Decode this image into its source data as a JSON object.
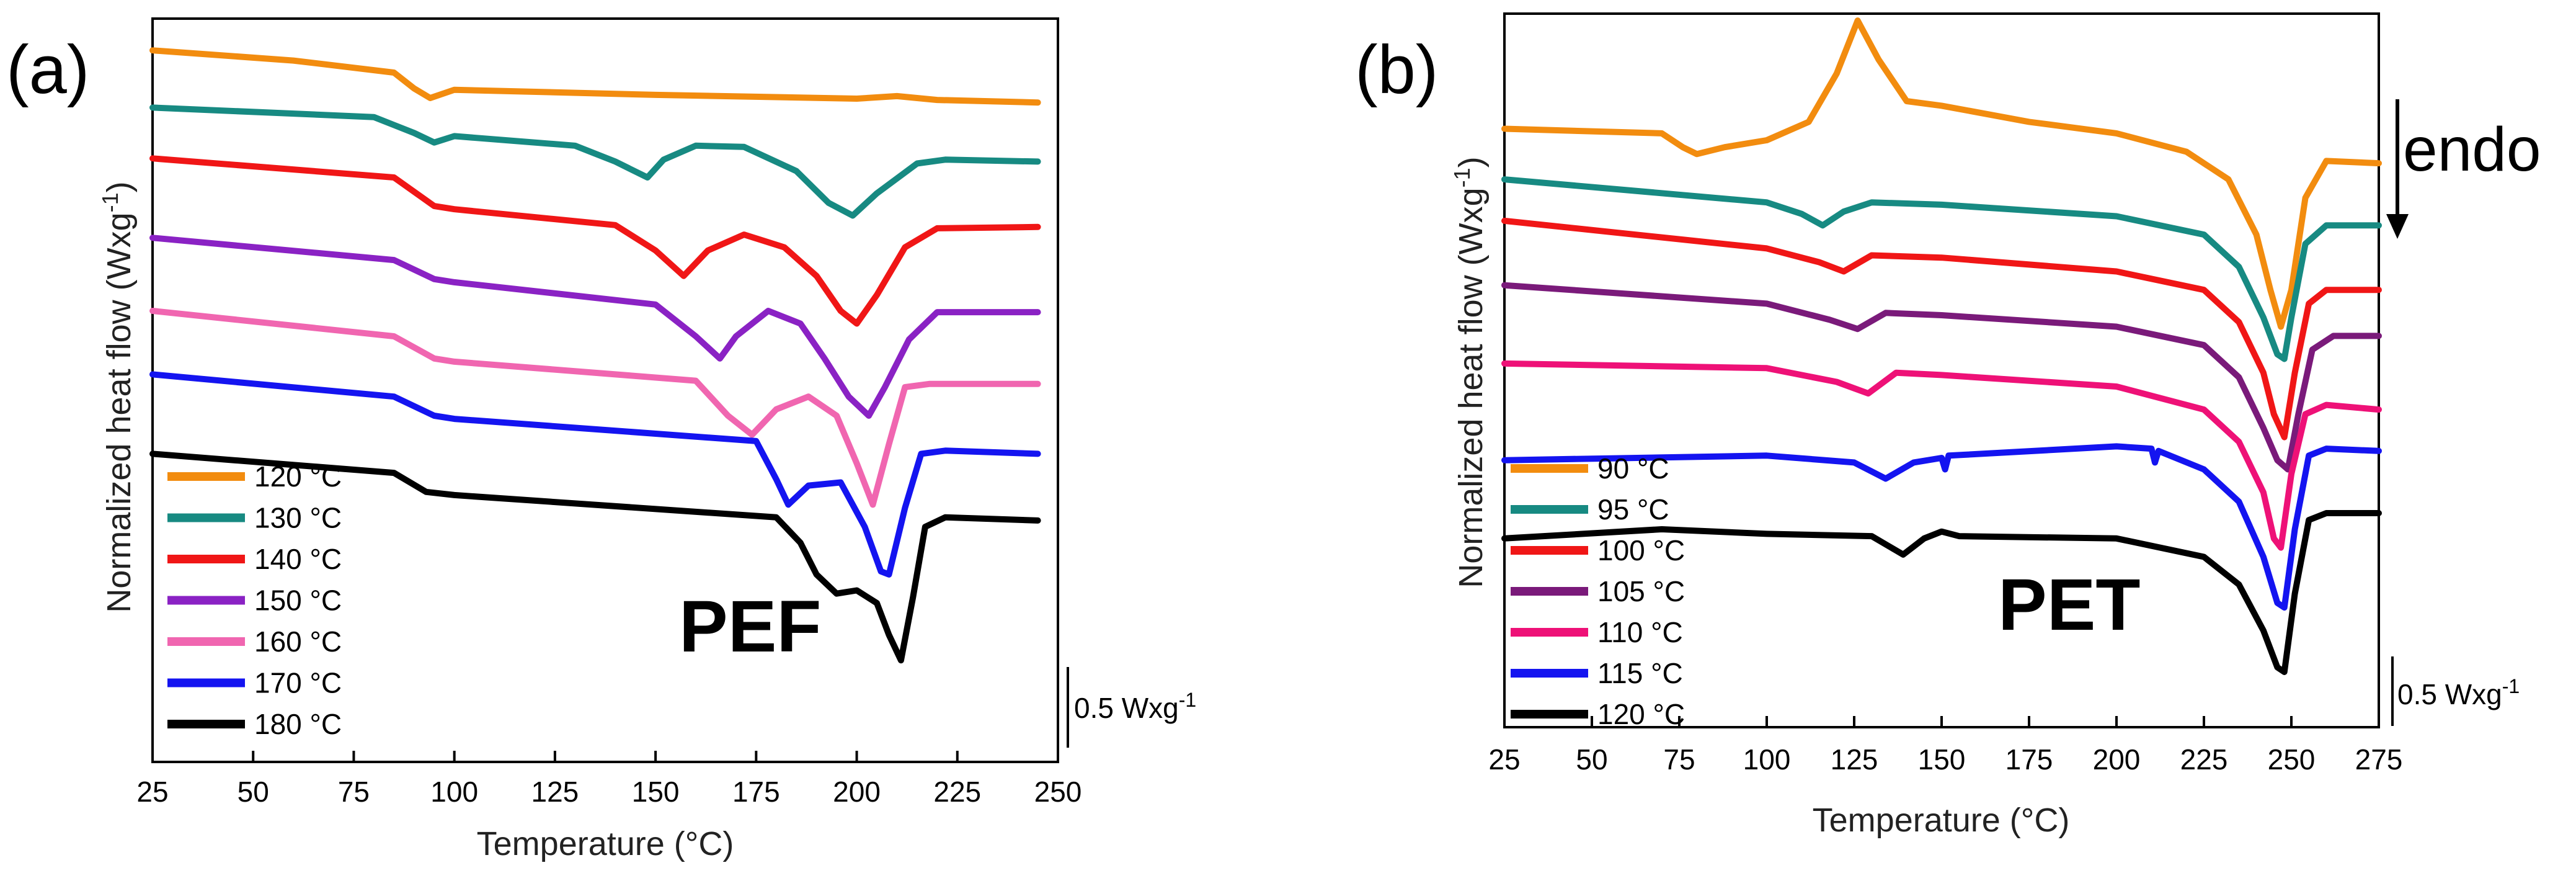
{
  "figure": {
    "panels": [
      "(a)",
      "(b)"
    ]
  },
  "chart_data": [
    {
      "type": "line",
      "panel_label": "(a)",
      "annotation": "PEF",
      "xlabel": "Temperature (°C)",
      "ylabel": "Normalized heat flow (Wxg",
      "ylabel_sup": "-1",
      "ylabel_end": ")",
      "xlim": [
        25,
        250
      ],
      "ylim": [
        -11.2,
        0.5
      ],
      "xticks": [
        25,
        50,
        75,
        100,
        125,
        150,
        175,
        200,
        225,
        250
      ],
      "scale_bar": {
        "label": "0.5 Wxg",
        "sup": "-1",
        "value": 0.5
      },
      "series": [
        {
          "name": "120 °C",
          "color": "#F28C0F",
          "x": [
            25,
            60,
            85,
            90,
            94,
            100,
            150,
            200,
            210,
            220,
            245
          ],
          "y": [
            0,
            -0.16,
            -0.35,
            -0.6,
            -0.75,
            -0.62,
            -0.7,
            -0.76,
            -0.72,
            -0.78,
            -0.82
          ]
        },
        {
          "name": "130 °C",
          "color": "#178A82",
          "x": [
            25,
            80,
            90,
            95,
            100,
            130,
            140,
            148,
            152,
            160,
            172,
            185,
            193,
            199,
            205,
            215,
            222,
            245
          ],
          "y": [
            -0.9,
            -1.05,
            -1.3,
            -1.45,
            -1.35,
            -1.5,
            -1.75,
            -2.0,
            -1.72,
            -1.5,
            -1.52,
            -1.9,
            -2.4,
            -2.6,
            -2.25,
            -1.78,
            -1.72,
            -1.75
          ]
        },
        {
          "name": "140 °C",
          "color": "#F01616",
          "x": [
            25,
            85,
            95,
            100,
            140,
            150,
            157,
            163,
            172,
            182,
            190,
            196,
            200,
            205,
            212,
            220,
            245
          ],
          "y": [
            -1.7,
            -2.0,
            -2.45,
            -2.5,
            -2.75,
            -3.15,
            -3.55,
            -3.15,
            -2.9,
            -3.1,
            -3.55,
            -4.1,
            -4.3,
            -3.85,
            -3.1,
            -2.8,
            -2.78
          ]
        },
        {
          "name": "150 °C",
          "color": "#8A22C4",
          "x": [
            25,
            85,
            95,
            100,
            150,
            160,
            166,
            170,
            178,
            186,
            192,
            198,
            203,
            207,
            213,
            220,
            245
          ],
          "y": [
            -2.95,
            -3.3,
            -3.6,
            -3.65,
            -4.0,
            -4.5,
            -4.85,
            -4.5,
            -4.1,
            -4.3,
            -4.85,
            -5.45,
            -5.75,
            -5.3,
            -4.55,
            -4.12,
            -4.12
          ]
        },
        {
          "name": "160 °C",
          "color": "#F066B0",
          "x": [
            25,
            85,
            95,
            100,
            160,
            168,
            174,
            180,
            188,
            195,
            200,
            204,
            208,
            212,
            218,
            245
          ],
          "y": [
            -4.1,
            -4.5,
            -4.85,
            -4.9,
            -5.2,
            -5.75,
            -6.05,
            -5.65,
            -5.45,
            -5.75,
            -6.5,
            -7.15,
            -6.2,
            -5.3,
            -5.25,
            -5.25
          ]
        },
        {
          "name": "170 °C",
          "color": "#1414F0",
          "x": [
            25,
            85,
            95,
            100,
            175,
            180,
            183,
            188,
            196,
            202,
            206,
            208,
            212,
            216,
            222,
            245
          ],
          "y": [
            -5.1,
            -5.45,
            -5.75,
            -5.8,
            -6.15,
            -6.75,
            -7.15,
            -6.85,
            -6.8,
            -7.5,
            -8.2,
            -8.25,
            -7.2,
            -6.35,
            -6.3,
            -6.35
          ]
        },
        {
          "name": "180 °C",
          "color": "#000000",
          "x": [
            25,
            85,
            93,
            100,
            180,
            186,
            190,
            195,
            200,
            205,
            208,
            211,
            214,
            217,
            222,
            245
          ],
          "y": [
            -6.35,
            -6.65,
            -6.95,
            -7.0,
            -7.35,
            -7.75,
            -8.25,
            -8.55,
            -8.5,
            -8.7,
            -9.2,
            -9.6,
            -8.6,
            -7.5,
            -7.35,
            -7.4
          ]
        }
      ]
    },
    {
      "type": "line",
      "panel_label": "(b)",
      "annotation": "PET",
      "xlabel": "Temperature (°C)",
      "ylabel": "Normalized heat flow (Wxg",
      "ylabel_sup": "-1",
      "ylabel_end": ")",
      "xlim": [
        25,
        275
      ],
      "ylim": [
        -14.5,
        1.0
      ],
      "xticks": [
        25,
        50,
        75,
        100,
        125,
        150,
        175,
        200,
        225,
        250,
        275
      ],
      "endo_label": "endo",
      "scale_bar": {
        "label": "0.5 Wxg",
        "sup": "-1",
        "value": 0.5
      },
      "series": [
        {
          "name": "90 °C",
          "color": "#F28C0F",
          "x": [
            25,
            70,
            76,
            80,
            88,
            100,
            112,
            120,
            126,
            132,
            140,
            150,
            175,
            200,
            220,
            232,
            240,
            244,
            247,
            250,
            254,
            260,
            275
          ],
          "y": [
            -1.5,
            -1.6,
            -1.9,
            -2.05,
            -1.9,
            -1.75,
            -1.35,
            -0.3,
            0.85,
            0.0,
            -0.9,
            -1.0,
            -1.35,
            -1.6,
            -2.0,
            -2.6,
            -3.8,
            -5.0,
            -5.8,
            -5.0,
            -3.0,
            -2.2,
            -2.25
          ]
        },
        {
          "name": "95 °C",
          "color": "#178A82",
          "x": [
            25,
            100,
            110,
            116,
            122,
            130,
            150,
            200,
            225,
            235,
            242,
            246,
            248,
            250,
            254,
            260,
            275
          ],
          "y": [
            -2.6,
            -3.1,
            -3.35,
            -3.6,
            -3.3,
            -3.1,
            -3.15,
            -3.4,
            -3.8,
            -4.5,
            -5.6,
            -6.4,
            -6.5,
            -5.6,
            -4.0,
            -3.6,
            -3.6
          ]
        },
        {
          "name": "100 °C",
          "color": "#F01616",
          "x": [
            25,
            100,
            115,
            122,
            130,
            150,
            200,
            225,
            235,
            242,
            245,
            248,
            251,
            255,
            260,
            275
          ],
          "y": [
            -3.5,
            -4.1,
            -4.4,
            -4.6,
            -4.25,
            -4.3,
            -4.6,
            -5.0,
            -5.7,
            -6.8,
            -7.7,
            -8.2,
            -6.8,
            -5.3,
            -5.0,
            -5.0
          ]
        },
        {
          "name": "105 °C",
          "color": "#7A1A7A",
          "x": [
            25,
            100,
            118,
            126,
            134,
            150,
            200,
            225,
            235,
            242,
            246,
            249,
            252,
            256,
            262,
            275
          ],
          "y": [
            -4.9,
            -5.3,
            -5.65,
            -5.85,
            -5.5,
            -5.55,
            -5.8,
            -6.2,
            -6.9,
            -8.0,
            -8.7,
            -8.9,
            -7.7,
            -6.3,
            -6.0,
            -6.0
          ]
        },
        {
          "name": "110 °C",
          "color": "#EE1177",
          "x": [
            25,
            100,
            120,
            129,
            137,
            150,
            200,
            225,
            235,
            242,
            245,
            247,
            250,
            254,
            260,
            275
          ],
          "y": [
            -6.6,
            -6.7,
            -7.0,
            -7.25,
            -6.8,
            -6.85,
            -7.1,
            -7.6,
            -8.3,
            -9.4,
            -10.4,
            -10.6,
            -9.0,
            -7.7,
            -7.5,
            -7.6
          ]
        },
        {
          "name": "115 °C",
          "color": "#1414F0",
          "x": [
            25,
            100,
            125,
            134,
            142,
            150,
            151,
            152,
            200,
            210,
            211,
            212,
            225,
            235,
            242,
            246,
            248,
            251,
            255,
            260,
            275
          ],
          "y": [
            -8.7,
            -8.6,
            -8.75,
            -9.1,
            -8.75,
            -8.65,
            -8.9,
            -8.6,
            -8.4,
            -8.45,
            -8.75,
            -8.5,
            -8.9,
            -9.6,
            -10.8,
            -11.8,
            -11.9,
            -10.2,
            -8.6,
            -8.45,
            -8.5
          ]
        },
        {
          "name": "120 °C",
          "color": "#000000",
          "x": [
            25,
            70,
            100,
            130,
            139,
            145,
            150,
            155,
            200,
            225,
            235,
            242,
            246,
            248,
            251,
            255,
            260,
            275
          ],
          "y": [
            -10.4,
            -10.2,
            -10.3,
            -10.35,
            -10.75,
            -10.4,
            -10.25,
            -10.35,
            -10.4,
            -10.8,
            -11.4,
            -12.4,
            -13.2,
            -13.3,
            -11.6,
            -10.0,
            -9.85,
            -9.85
          ]
        }
      ]
    }
  ]
}
